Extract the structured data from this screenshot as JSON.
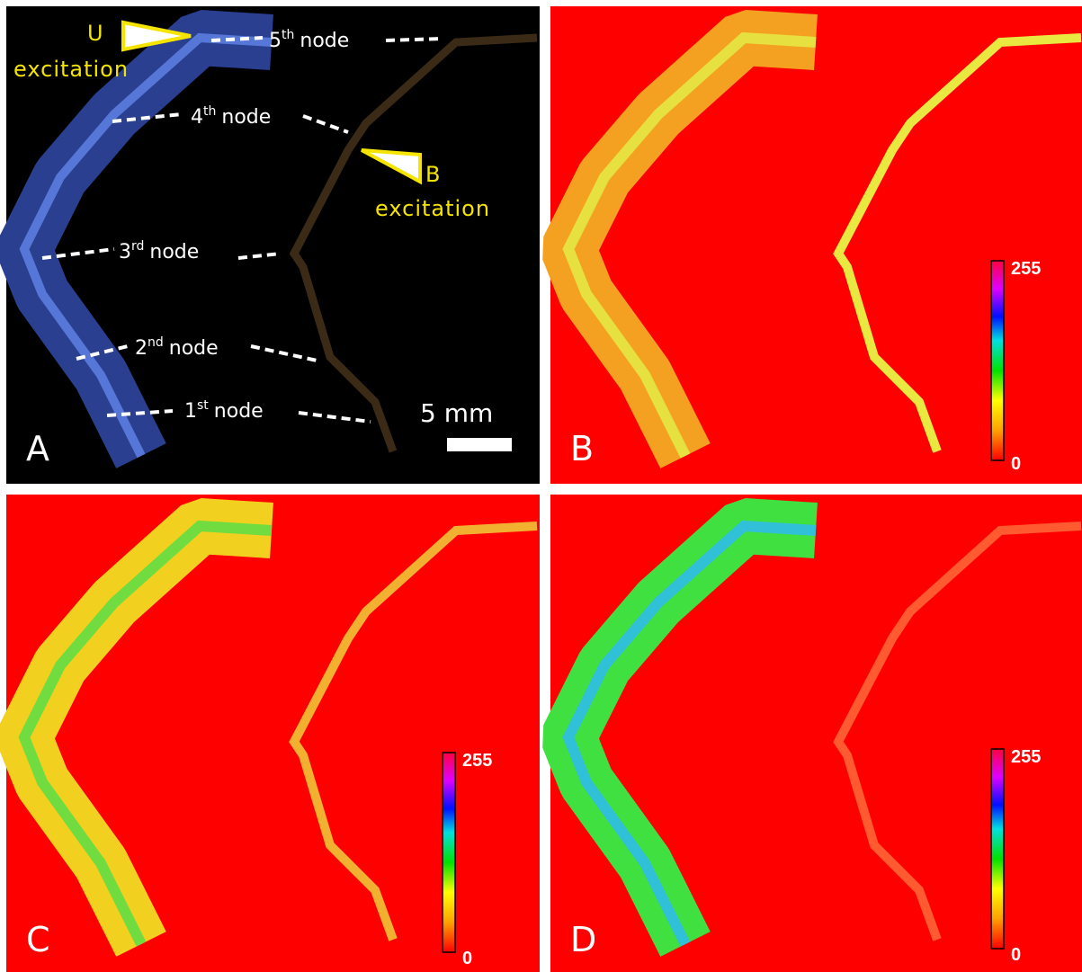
{
  "panels": {
    "a": {
      "letter": "A",
      "u_label": "U",
      "u_word": "excitation",
      "b_label": "B",
      "b_word": "excitation",
      "nodes": [
        {
          "number": "5",
          "suffix": "th",
          "word": "node"
        },
        {
          "number": "4",
          "suffix": "th",
          "word": "node"
        },
        {
          "number": "3",
          "suffix": "rd",
          "word": "node"
        },
        {
          "number": "2",
          "suffix": "nd",
          "word": "node"
        },
        {
          "number": "1",
          "suffix": "st",
          "word": "node"
        }
      ],
      "scale": "5 mm"
    },
    "b": {
      "letter": "B",
      "colorbar_max": "255",
      "colorbar_min": "0"
    },
    "c": {
      "letter": "C",
      "colorbar_max": "255",
      "colorbar_min": "0"
    },
    "d": {
      "letter": "D",
      "colorbar_max": "255",
      "colorbar_min": "0"
    }
  }
}
